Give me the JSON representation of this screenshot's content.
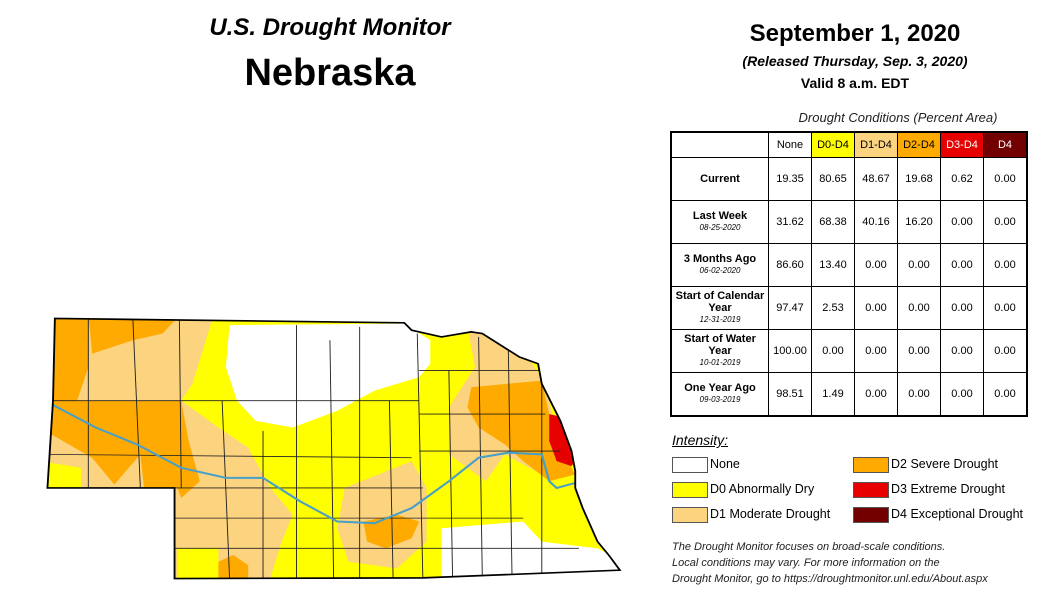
{
  "header": {
    "program": "U.S. Drought Monitor",
    "state": "Nebraska"
  },
  "date": {
    "map_date": "September 1, 2020",
    "released": "(Released Thursday, Sep. 3, 2020)",
    "valid": "Valid 8 a.m. EDT"
  },
  "table": {
    "caption": "Drought Conditions (Percent Area)",
    "columns": [
      {
        "label": "None",
        "color": "#ffffff",
        "text_color": "#000000"
      },
      {
        "label": "D0-D4",
        "color": "#ffff00",
        "text_color": "#000000"
      },
      {
        "label": "D1-D4",
        "color": "#fcd37f",
        "text_color": "#000000"
      },
      {
        "label": "D2-D4",
        "color": "#ffaa00",
        "text_color": "#000000"
      },
      {
        "label": "D3-D4",
        "color": "#e60000",
        "text_color": "#ffffff"
      },
      {
        "label": "D4",
        "color": "#730000",
        "text_color": "#ffffff"
      }
    ],
    "rows": [
      {
        "label": "Current",
        "date": "",
        "values": [
          "19.35",
          "80.65",
          "48.67",
          "19.68",
          "0.62",
          "0.00"
        ]
      },
      {
        "label": "Last Week",
        "date": "08-25-2020",
        "values": [
          "31.62",
          "68.38",
          "40.16",
          "16.20",
          "0.00",
          "0.00"
        ]
      },
      {
        "label": "3 Months Ago",
        "date": "06-02-2020",
        "values": [
          "86.60",
          "13.40",
          "0.00",
          "0.00",
          "0.00",
          "0.00"
        ]
      },
      {
        "label": "Start of Calendar Year",
        "date": "12-31-2019",
        "values": [
          "97.47",
          "2.53",
          "0.00",
          "0.00",
          "0.00",
          "0.00"
        ]
      },
      {
        "label": "Start of Water Year",
        "date": "10-01-2019",
        "values": [
          "100.00",
          "0.00",
          "0.00",
          "0.00",
          "0.00",
          "0.00"
        ]
      },
      {
        "label": "One Year Ago",
        "date": "09-03-2019",
        "values": [
          "98.51",
          "1.49",
          "0.00",
          "0.00",
          "0.00",
          "0.00"
        ]
      }
    ]
  },
  "legend": {
    "title": "Intensity:",
    "items": [
      {
        "label": "None",
        "color": "#ffffff"
      },
      {
        "label": "D0 Abnormally Dry",
        "color": "#ffff00"
      },
      {
        "label": "D1 Moderate Drought",
        "color": "#fcd37f"
      },
      {
        "label": "D2 Severe Drought",
        "color": "#ffaa00"
      },
      {
        "label": "D3 Extreme Drought",
        "color": "#e60000"
      },
      {
        "label": "D4 Exceptional Drought",
        "color": "#730000"
      }
    ]
  },
  "footnote": {
    "lines": [
      "The Drought Monitor focuses on broad-scale conditions.",
      "Local conditions may vary. For more information on the",
      "Drought Monitor, go to https://droughtmonitor.unl.edu/About.aspx"
    ]
  },
  "map": {
    "river_color": "#4a9fc8"
  }
}
